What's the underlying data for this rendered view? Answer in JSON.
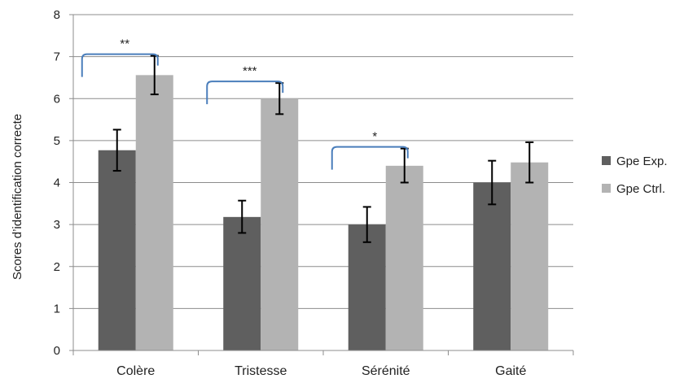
{
  "chart_data": {
    "type": "bar",
    "categories": [
      "Colère",
      "Tristesse",
      "Sérénité",
      "Gaité"
    ],
    "series": [
      {
        "name": "Gpe Exp.",
        "color": "#5f5f5f",
        "values": [
          4.77,
          3.18,
          3.0,
          4.0
        ],
        "error_low": [
          4.28,
          2.8,
          2.58,
          3.48
        ],
        "error_high": [
          5.26,
          3.57,
          3.42,
          4.52
        ]
      },
      {
        "name": "Gpe Ctrl.",
        "color": "#b3b3b3",
        "values": [
          6.56,
          6.0,
          4.4,
          4.48
        ],
        "error_low": [
          6.1,
          5.63,
          4.0,
          4.0
        ],
        "error_high": [
          7.02,
          6.37,
          4.81,
          4.96
        ]
      }
    ],
    "ylabel": "Scores d’identification correcte",
    "xlabel": "",
    "ylim": [
      0,
      8
    ],
    "yticks": [
      0,
      1,
      2,
      3,
      4,
      5,
      6,
      7,
      8
    ],
    "grid": "horizontal",
    "legend_position": "right",
    "significance": [
      {
        "category_index": 0,
        "label": "**"
      },
      {
        "category_index": 1,
        "label": "***"
      },
      {
        "category_index": 2,
        "label": "*"
      }
    ],
    "bracket_color": "#4a7ebb"
  }
}
